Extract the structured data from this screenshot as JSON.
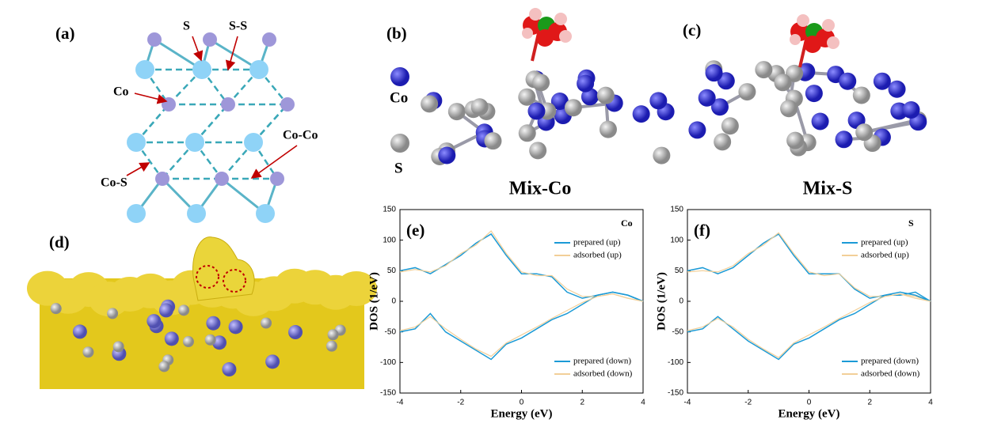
{
  "panels": [
    {
      "label": "(a)",
      "annotations": [
        "S",
        "S-S",
        "Co",
        "Co-Co",
        "Co-S"
      ]
    },
    {
      "label": "(b)",
      "legend": [
        "Co",
        "S"
      ],
      "caption": "Mix-Co"
    },
    {
      "label": "(c)",
      "caption": "Mix-S"
    },
    {
      "label": "(d)"
    }
  ],
  "chart_data": [
    {
      "type": "line",
      "panel_label": "(e)",
      "corner_label": "Co",
      "x_label": "Energy (eV)",
      "y_label": "DOS (1/eV)",
      "x": [
        -4,
        -3.5,
        -3,
        -2.5,
        -2,
        -1.5,
        -1,
        -0.5,
        0,
        0.5,
        1,
        1.5,
        2,
        2.5,
        3,
        3.5,
        4
      ],
      "xlim": [
        -4,
        4
      ],
      "xticks": [
        -4,
        -2,
        0,
        2,
        4
      ],
      "ylim": [
        -150,
        150
      ],
      "yticks": [
        -150,
        -100,
        -50,
        0,
        50,
        100,
        150
      ],
      "series": [
        {
          "name": "prepared (up)",
          "color": "#1b9ad6",
          "values": [
            50,
            55,
            45,
            60,
            75,
            95,
            110,
            75,
            45,
            45,
            40,
            15,
            5,
            10,
            15,
            10,
            0
          ]
        },
        {
          "name": "adsorbed (up)",
          "color": "#f2cf98",
          "values": [
            48,
            52,
            48,
            58,
            78,
            92,
            115,
            78,
            48,
            42,
            42,
            20,
            8,
            8,
            12,
            5,
            0
          ]
        },
        {
          "name": "prepared (down)",
          "color": "#1b9ad6",
          "values": [
            -50,
            -45,
            -20,
            -50,
            -65,
            -80,
            -95,
            -70,
            -60,
            -45,
            -30,
            -20,
            -5,
            10,
            15,
            10,
            0
          ]
        },
        {
          "name": "adsorbed (down)",
          "color": "#f2cf98",
          "values": [
            -48,
            -42,
            -25,
            -45,
            -62,
            -78,
            -90,
            -68,
            -55,
            -42,
            -28,
            -15,
            -2,
            8,
            12,
            5,
            0
          ]
        }
      ]
    },
    {
      "type": "line",
      "panel_label": "(f)",
      "corner_label": "S",
      "x_label": "Energy (eV)",
      "y_label": "DOS (1/eV)",
      "x": [
        -4,
        -3.5,
        -3,
        -2.5,
        -2,
        -1.5,
        -1,
        -0.5,
        0,
        0.5,
        1,
        1.5,
        2,
        2.5,
        3,
        3.5,
        4
      ],
      "xlim": [
        -4,
        4
      ],
      "xticks": [
        -4,
        -2,
        0,
        2,
        4
      ],
      "ylim": [
        -150,
        150
      ],
      "yticks": [
        -150,
        -100,
        -50,
        0,
        50,
        100,
        150
      ],
      "series": [
        {
          "name": "prepared (up)",
          "color": "#1b9ad6",
          "values": [
            50,
            55,
            45,
            55,
            75,
            95,
            110,
            75,
            45,
            45,
            45,
            20,
            5,
            10,
            10,
            15,
            0
          ]
        },
        {
          "name": "adsorbed (up)",
          "color": "#f2cf98",
          "values": [
            48,
            50,
            48,
            58,
            78,
            92,
            112,
            78,
            48,
            42,
            45,
            22,
            8,
            8,
            12,
            8,
            0
          ]
        },
        {
          "name": "prepared (down)",
          "color": "#1b9ad6",
          "values": [
            -50,
            -45,
            -25,
            -45,
            -65,
            -80,
            -95,
            -70,
            -60,
            -45,
            -30,
            -20,
            -5,
            10,
            15,
            10,
            0
          ]
        },
        {
          "name": "adsorbed (down)",
          "color": "#f2cf98",
          "values": [
            -48,
            -42,
            -28,
            -42,
            -62,
            -78,
            -92,
            -68,
            -55,
            -42,
            -28,
            -15,
            -2,
            8,
            12,
            5,
            0
          ]
        }
      ]
    }
  ]
}
